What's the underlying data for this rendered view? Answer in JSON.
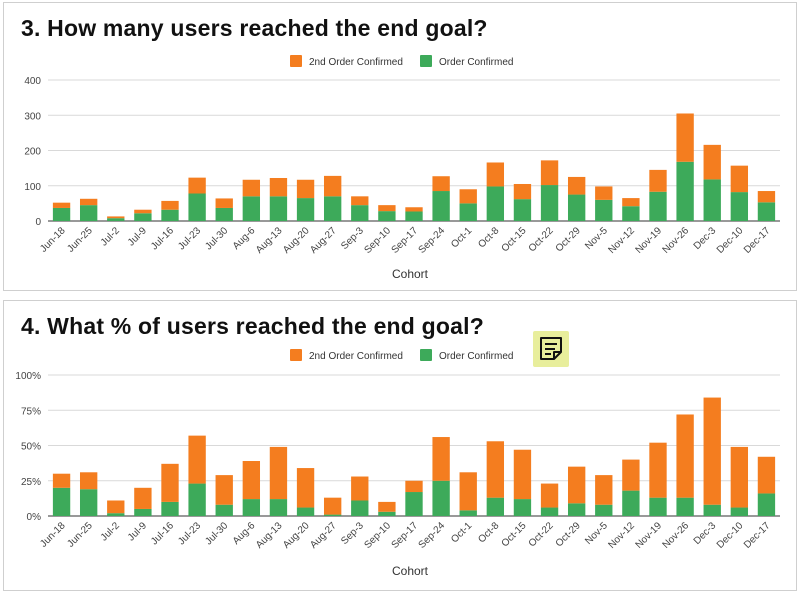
{
  "chart_data": [
    {
      "type": "bar",
      "stacked": true,
      "title": "3. How many users reached the end goal?",
      "xlabel": "Cohort",
      "ylabel": "",
      "ylim": [
        0,
        400
      ],
      "yticks": [
        "0",
        "100",
        "200",
        "300",
        "400"
      ],
      "ytick_values": [
        0,
        100,
        200,
        300,
        400
      ],
      "grid": true,
      "legend_position": "top-center",
      "categories": [
        "Jun-18",
        "Jun-25",
        "Jul-2",
        "Jul-9",
        "Jul-16",
        "Jul-23",
        "Jul-30",
        "Aug-6",
        "Aug-13",
        "Aug-20",
        "Aug-27",
        "Sep-3",
        "Sep-10",
        "Sep-17",
        "Sep-24",
        "Oct-1",
        "Oct-8",
        "Oct-15",
        "Oct-22",
        "Oct-29",
        "Nov-5",
        "Nov-12",
        "Nov-19",
        "Nov-26",
        "Dec-3",
        "Dec-10",
        "Dec-17"
      ],
      "series": [
        {
          "name": "Order Confirmed",
          "color": "#3daa5a",
          "values": [
            37,
            45,
            8,
            22,
            32,
            78,
            37,
            70,
            70,
            65,
            70,
            45,
            28,
            27,
            85,
            50,
            98,
            62,
            102,
            75,
            60,
            42,
            83,
            168,
            118,
            82,
            53
          ]
        },
        {
          "name": "2nd Order Confirmed",
          "color": "#f47d1f",
          "values": [
            15,
            18,
            5,
            10,
            25,
            45,
            27,
            47,
            52,
            52,
            58,
            25,
            17,
            12,
            42,
            40,
            68,
            43,
            70,
            50,
            38,
            23,
            62,
            137,
            98,
            75,
            32
          ]
        }
      ]
    },
    {
      "type": "bar",
      "stacked": true,
      "title": "4. What % of users reached the end goal?",
      "xlabel": "Cohort",
      "ylabel": "",
      "ylim": [
        0,
        100
      ],
      "yticks": [
        "0%",
        "25%",
        "50%",
        "75%",
        "100%"
      ],
      "ytick_values": [
        0,
        25,
        50,
        75,
        100
      ],
      "grid": true,
      "legend_position": "top-center",
      "categories": [
        "Jun-18",
        "Jun-25",
        "Jul-2",
        "Jul-9",
        "Jul-16",
        "Jul-23",
        "Jul-30",
        "Aug-6",
        "Aug-13",
        "Aug-20",
        "Aug-27",
        "Sep-3",
        "Sep-10",
        "Sep-17",
        "Sep-24",
        "Oct-1",
        "Oct-8",
        "Oct-15",
        "Oct-22",
        "Oct-29",
        "Nov-5",
        "Nov-12",
        "Nov-19",
        "Nov-26",
        "Dec-3",
        "Dec-10",
        "Dec-17"
      ],
      "series": [
        {
          "name": "Order Confirmed",
          "color": "#3daa5a",
          "values": [
            20,
            19,
            2,
            5,
            10,
            23,
            8,
            12,
            12,
            6,
            1,
            11,
            3,
            17,
            25,
            4,
            13,
            12,
            6,
            9,
            8,
            18,
            13,
            13,
            8,
            6,
            16
          ]
        },
        {
          "name": "2nd Order Confirmed",
          "color": "#f47d1f",
          "values": [
            10,
            12,
            9,
            15,
            27,
            34,
            21,
            27,
            37,
            28,
            12,
            17,
            7,
            8,
            31,
            27,
            40,
            35,
            17,
            26,
            21,
            22,
            39,
            59,
            76,
            43,
            26
          ]
        }
      ]
    }
  ],
  "icons": {
    "note": "sticky-note-icon"
  }
}
